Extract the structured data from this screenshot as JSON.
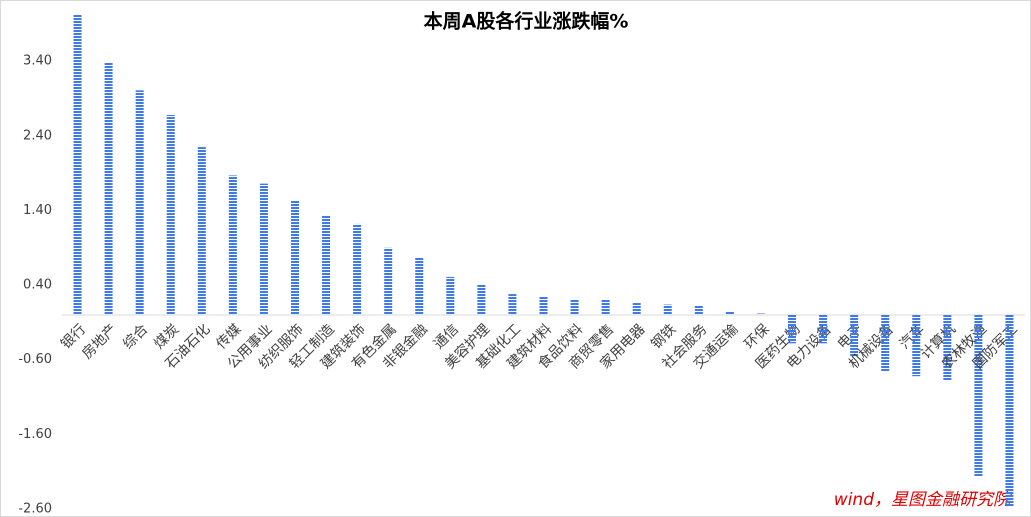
{
  "chart_data": {
    "type": "bar",
    "title": "本周A股各行业涨跌幅%",
    "categories": [
      "银行",
      "房地产",
      "综合",
      "煤炭",
      "石油石化",
      "传媒",
      "公用事业",
      "纺织服饰",
      "轻工制造",
      "建筑装饰",
      "有色金属",
      "非银金融",
      "通信",
      "美容护理",
      "基础化工",
      "建筑材料",
      "食品饮料",
      "商贸零售",
      "家用电器",
      "钢铁",
      "社会服务",
      "交通运输",
      "环保",
      "医药生物",
      "电力设备",
      "电子",
      "机械设备",
      "汽车",
      "计算机",
      "农林牧渔",
      "国防军工"
    ],
    "values": [
      4.03,
      3.39,
      3.01,
      2.68,
      2.25,
      1.87,
      1.76,
      1.54,
      1.33,
      1.22,
      0.9,
      0.77,
      0.51,
      0.41,
      0.28,
      0.25,
      0.21,
      0.21,
      0.16,
      0.14,
      0.13,
      0.04,
      0.02,
      -0.38,
      -0.38,
      -0.55,
      -0.76,
      -0.82,
      -0.88,
      -2.17,
      -2.56
    ],
    "color": "#3f7ae6",
    "ylim": [
      -2.6,
      4.1
    ],
    "yticks": [
      {
        "value": -2.6,
        "label": "-2.60"
      },
      {
        "value": -1.6,
        "label": "-1.60"
      },
      {
        "value": -0.6,
        "label": "-0.60"
      },
      {
        "value": 0.4,
        "label": "0.40"
      },
      {
        "value": 1.4,
        "label": "1.40"
      },
      {
        "value": 2.4,
        "label": "2.40"
      },
      {
        "value": 3.4,
        "label": "3.40"
      }
    ],
    "grid": false,
    "annotation": "wind，星图金融研究院"
  }
}
